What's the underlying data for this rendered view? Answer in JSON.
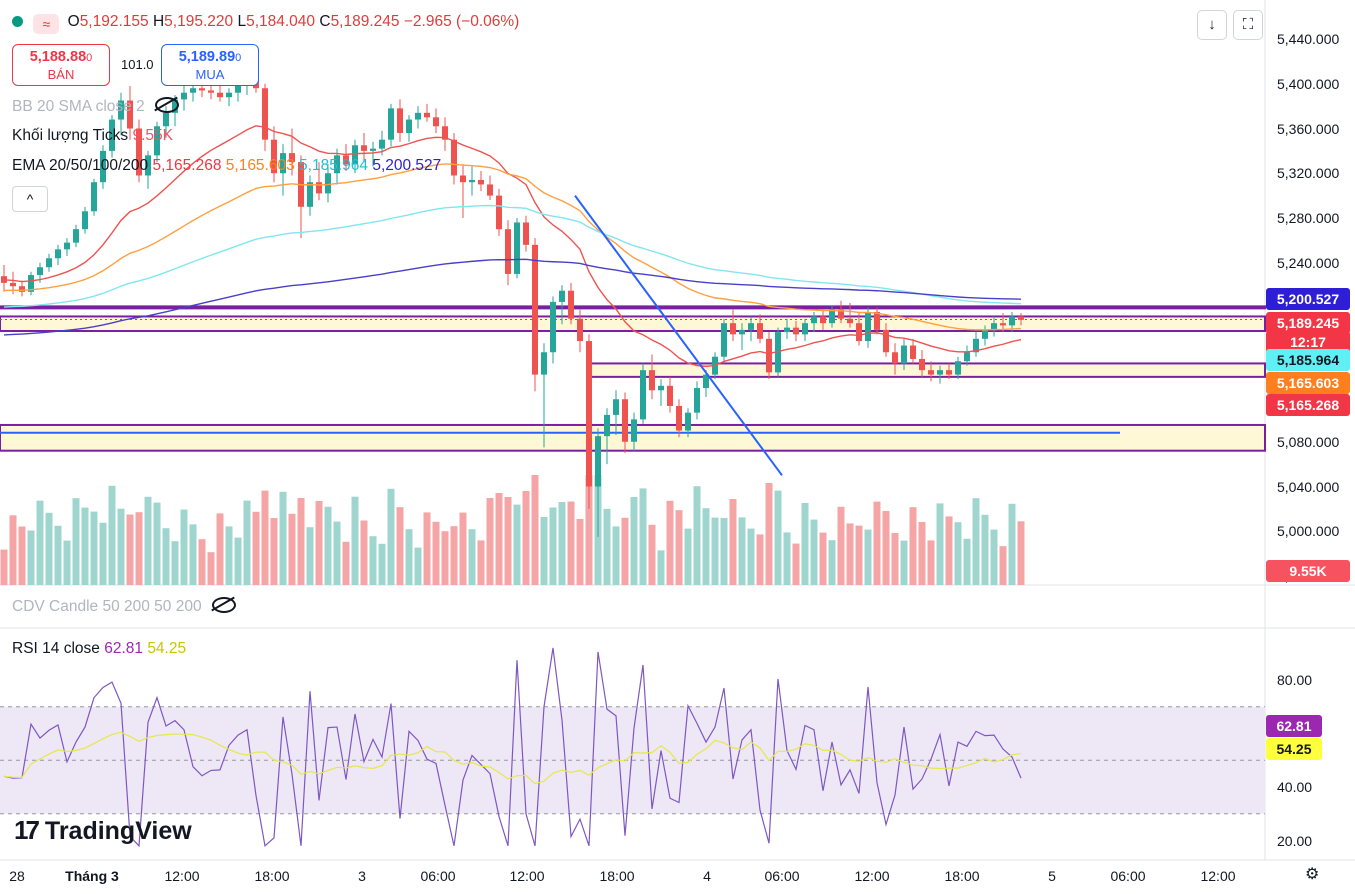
{
  "header": {
    "ohlc": {
      "o_label": "O",
      "o": "5,192.155",
      "h_label": "H",
      "h": "5,195.220",
      "l_label": "L",
      "l": "5,184.040",
      "c_label": "C",
      "c": "5,189.245",
      "change": "−2.965 (−0.06%)"
    },
    "quote": {
      "sell_price": "5,188.88",
      "sell_sup": "0",
      "sell_label": "BÁN",
      "spread": "101.0",
      "buy_price": "5,189.89",
      "buy_sup": "0",
      "buy_label": "MUA"
    },
    "indicators": {
      "bb": "BB 20 SMA close 2",
      "volume": "Khối lượng",
      "volume_ticks": "Ticks",
      "volume_value": "9.55K",
      "ema": "EMA 20/50/100/200",
      "ema20": "5,165.268",
      "ema50": "5,165.603",
      "ema100": "5,185.964",
      "ema200": "5,200.527",
      "cdv": "CDV Candle 50 200 50 200",
      "rsi": "RSI 14 close",
      "rsi_value": "62.81",
      "rsi_ma": "54.25"
    },
    "buttons": {
      "collapse": "^",
      "download": "↓",
      "fullscreen": "⛶"
    }
  },
  "price_axis": {
    "ticks": [
      "5,440.000",
      "5,400.000",
      "5,360.000",
      "5,320.000",
      "5,280.000",
      "5,240.000",
      "5,080.000",
      "5,040.000",
      "5,000.000",
      "4,960.000"
    ],
    "tags": [
      {
        "text": "5,200.527",
        "bg": "#2e1fd6",
        "fg": "#ffffff"
      },
      {
        "text": "5,189.245",
        "bg": "#f23645",
        "fg": "#ffffff"
      },
      {
        "text": "12:17",
        "bg": "#f23645",
        "fg": "#ffffff"
      },
      {
        "text": "5,185.964",
        "bg": "#5ff0f5",
        "fg": "#131722"
      },
      {
        "text": "5,165.603",
        "bg": "#ff7f1f",
        "fg": "#ffffff"
      },
      {
        "text": "5,165.268",
        "bg": "#f23645",
        "fg": "#ffffff"
      },
      {
        "text": "9.55K",
        "bg": "#f7525f",
        "fg": "#ffffff"
      }
    ]
  },
  "rsi_axis": {
    "ticks": [
      "80.00",
      "40.00",
      "20.00"
    ],
    "tags": [
      {
        "text": "62.81",
        "bg": "#9c27b0",
        "fg": "#ffffff"
      },
      {
        "text": "54.25",
        "bg": "#ffff3b",
        "fg": "#131722"
      }
    ]
  },
  "time_axis": [
    "28",
    "Tháng 3",
    "12:00",
    "18:00",
    "3",
    "06:00",
    "12:00",
    "18:00",
    "4",
    "06:00",
    "12:00",
    "18:00",
    "5",
    "06:00",
    "12:00"
  ],
  "logo": {
    "text": "TradingView",
    "mark": "17"
  },
  "colors": {
    "up": "#26a69a",
    "down": "#ef5350",
    "vol_up": "#9fd5cf",
    "vol_down": "#f5a5a5",
    "zone": "#7b1fa2",
    "zone_fill": "#fff8d6",
    "ema20": "#ef5350",
    "ema50": "#ffa040",
    "ema100": "#80e6f0",
    "ema200": "#4a3fc9",
    "trend": "#2962ff",
    "rsi": "#7e57c2",
    "rsi_ma": "#e6e84a",
    "rsi_band": "#ede7f6"
  },
  "chart_data": {
    "type": "candlestick",
    "title": "",
    "price_ylim": [
      4960,
      5440
    ],
    "zones": [
      {
        "top": 5201,
        "bottom": 5200
      },
      {
        "top": 5192,
        "bottom": 5179
      },
      {
        "top": 5150,
        "bottom": 5138
      },
      {
        "top": 5095,
        "bottom": 5072
      }
    ],
    "candles": [
      [
        5228,
        5238,
        5214,
        5222
      ],
      [
        5222,
        5232,
        5212,
        5219
      ],
      [
        5219,
        5224,
        5210,
        5214
      ],
      [
        5214,
        5232,
        5211,
        5229
      ],
      [
        5229,
        5240,
        5222,
        5236
      ],
      [
        5236,
        5248,
        5232,
        5244
      ],
      [
        5244,
        5256,
        5238,
        5252
      ],
      [
        5252,
        5262,
        5246,
        5258
      ],
      [
        5258,
        5274,
        5254,
        5270
      ],
      [
        5270,
        5290,
        5266,
        5286
      ],
      [
        5286,
        5315,
        5282,
        5312
      ],
      [
        5312,
        5345,
        5306,
        5340
      ],
      [
        5340,
        5372,
        5334,
        5368
      ],
      [
        5368,
        5392,
        5354,
        5385
      ],
      [
        5385,
        5398,
        5350,
        5360
      ],
      [
        5360,
        5368,
        5312,
        5318
      ],
      [
        5318,
        5340,
        5306,
        5336
      ],
      [
        5336,
        5366,
        5330,
        5362
      ],
      [
        5362,
        5380,
        5352,
        5374
      ],
      [
        5374,
        5390,
        5362,
        5386
      ],
      [
        5386,
        5398,
        5376,
        5392
      ],
      [
        5392,
        5404,
        5384,
        5396
      ],
      [
        5396,
        5404,
        5388,
        5394
      ],
      [
        5394,
        5400,
        5386,
        5392
      ],
      [
        5392,
        5398,
        5384,
        5388
      ],
      [
        5388,
        5396,
        5380,
        5392
      ],
      [
        5392,
        5402,
        5384,
        5398
      ],
      [
        5398,
        5410,
        5390,
        5404
      ],
      [
        5404,
        5418,
        5392,
        5396
      ],
      [
        5396,
        5400,
        5340,
        5350
      ],
      [
        5350,
        5362,
        5312,
        5320
      ],
      [
        5320,
        5346,
        5300,
        5338
      ],
      [
        5338,
        5360,
        5318,
        5330
      ],
      [
        5330,
        5336,
        5262,
        5290
      ],
      [
        5290,
        5318,
        5282,
        5312
      ],
      [
        5312,
        5330,
        5296,
        5302
      ],
      [
        5302,
        5328,
        5294,
        5320
      ],
      [
        5320,
        5342,
        5310,
        5336
      ],
      [
        5336,
        5346,
        5322,
        5328
      ],
      [
        5328,
        5350,
        5320,
        5345
      ],
      [
        5345,
        5356,
        5330,
        5340
      ],
      [
        5340,
        5348,
        5326,
        5342
      ],
      [
        5342,
        5358,
        5336,
        5350
      ],
      [
        5350,
        5382,
        5344,
        5378
      ],
      [
        5378,
        5386,
        5348,
        5356
      ],
      [
        5356,
        5372,
        5348,
        5368
      ],
      [
        5368,
        5380,
        5360,
        5374
      ],
      [
        5374,
        5382,
        5366,
        5370
      ],
      [
        5370,
        5378,
        5356,
        5362
      ],
      [
        5362,
        5370,
        5340,
        5350
      ],
      [
        5350,
        5356,
        5310,
        5318
      ],
      [
        5318,
        5328,
        5280,
        5312
      ],
      [
        5312,
        5326,
        5300,
        5314
      ],
      [
        5314,
        5322,
        5304,
        5310
      ],
      [
        5310,
        5318,
        5296,
        5300
      ],
      [
        5300,
        5306,
        5264,
        5270
      ],
      [
        5270,
        5278,
        5220,
        5230
      ],
      [
        5230,
        5280,
        5226,
        5276
      ],
      [
        5276,
        5282,
        5250,
        5256
      ],
      [
        5256,
        5262,
        5125,
        5140
      ],
      [
        5140,
        5168,
        5075,
        5160
      ],
      [
        5160,
        5210,
        5150,
        5205
      ],
      [
        5205,
        5220,
        5185,
        5215
      ],
      [
        5215,
        5222,
        5185,
        5190
      ],
      [
        5190,
        5198,
        5160,
        5170
      ],
      [
        5170,
        5176,
        5020,
        5040
      ],
      [
        5040,
        5092,
        4995,
        5085
      ],
      [
        5085,
        5110,
        5060,
        5104
      ],
      [
        5104,
        5126,
        5086,
        5118
      ],
      [
        5118,
        5124,
        5070,
        5080
      ],
      [
        5080,
        5106,
        5072,
        5100
      ],
      [
        5100,
        5150,
        5096,
        5144
      ],
      [
        5144,
        5158,
        5118,
        5126
      ],
      [
        5126,
        5136,
        5112,
        5130
      ],
      [
        5130,
        5138,
        5106,
        5112
      ],
      [
        5112,
        5118,
        5084,
        5090
      ],
      [
        5090,
        5110,
        5084,
        5106
      ],
      [
        5106,
        5134,
        5100,
        5128
      ],
      [
        5128,
        5144,
        5120,
        5140
      ],
      [
        5140,
        5160,
        5136,
        5156
      ],
      [
        5156,
        5190,
        5150,
        5186
      ],
      [
        5186,
        5198,
        5170,
        5176
      ],
      [
        5176,
        5186,
        5162,
        5180
      ],
      [
        5180,
        5192,
        5170,
        5186
      ],
      [
        5186,
        5194,
        5168,
        5172
      ],
      [
        5172,
        5178,
        5136,
        5142
      ],
      [
        5142,
        5182,
        5138,
        5178
      ],
      [
        5178,
        5190,
        5172,
        5182
      ],
      [
        5182,
        5188,
        5170,
        5176
      ],
      [
        5176,
        5190,
        5170,
        5186
      ],
      [
        5186,
        5196,
        5178,
        5192
      ],
      [
        5192,
        5198,
        5180,
        5186
      ],
      [
        5186,
        5202,
        5182,
        5198
      ],
      [
        5198,
        5206,
        5186,
        5190
      ],
      [
        5190,
        5204,
        5182,
        5186
      ],
      [
        5186,
        5196,
        5166,
        5170
      ],
      [
        5170,
        5200,
        5164,
        5196
      ],
      [
        5196,
        5200,
        5176,
        5180
      ],
      [
        5180,
        5186,
        5156,
        5160
      ],
      [
        5160,
        5168,
        5140,
        5150
      ],
      [
        5150,
        5172,
        5144,
        5166
      ],
      [
        5166,
        5172,
        5150,
        5154
      ],
      [
        5154,
        5162,
        5138,
        5144
      ],
      [
        5144,
        5152,
        5134,
        5140
      ],
      [
        5140,
        5148,
        5132,
        5144
      ],
      [
        5144,
        5150,
        5136,
        5140
      ],
      [
        5140,
        5156,
        5136,
        5152
      ],
      [
        5152,
        5166,
        5148,
        5160
      ],
      [
        5160,
        5178,
        5156,
        5172
      ],
      [
        5172,
        5184,
        5166,
        5180
      ],
      [
        5180,
        5192,
        5174,
        5186
      ],
      [
        5186,
        5195,
        5178,
        5184
      ],
      [
        5184,
        5196,
        5178,
        5192
      ],
      [
        5192,
        5195,
        5184,
        5189
      ]
    ],
    "volume_units": "ticks"
  }
}
